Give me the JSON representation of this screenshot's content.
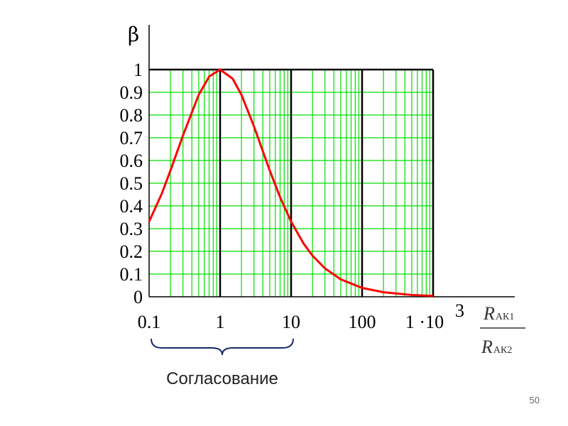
{
  "chart_data": {
    "type": "line",
    "x_scale": "log",
    "xlim": [
      0.1,
      1000
    ],
    "ylim": [
      0,
      1
    ],
    "grid": true,
    "ylabel": "β",
    "xlabel_numerator": "R",
    "xlabel_numerator_sub": "АК1",
    "xlabel_denominator": "R",
    "xlabel_denominator_sub": "АК2",
    "x_ticks": [
      "0.1",
      "1",
      "10",
      "100"
    ],
    "x_tick_last_base": "1 ·10",
    "x_tick_last_exp": "3",
    "y_ticks": [
      "0",
      "0.1",
      "0.2",
      "0.3",
      "0.4",
      "0.5",
      "0.6",
      "0.7",
      "0.8",
      "0.9",
      "1"
    ],
    "series": [
      {
        "color": "#ff0000",
        "formula": "4m/(1+m)^2",
        "x": [
          0.1,
          0.15,
          0.2,
          0.3,
          0.5,
          0.7,
          1,
          1.5,
          2,
          3,
          5,
          7,
          10,
          15,
          20,
          30,
          50,
          100,
          200,
          500,
          1000
        ],
        "y": [
          0.331,
          0.452,
          0.556,
          0.71,
          0.889,
          0.969,
          1.0,
          0.96,
          0.889,
          0.75,
          0.556,
          0.438,
          0.331,
          0.234,
          0.181,
          0.125,
          0.077,
          0.039,
          0.02,
          0.008,
          0.004
        ]
      }
    ]
  },
  "annotation": {
    "brace_label": "Согласование"
  },
  "colors": {
    "grid": "#00dd00",
    "curve": "#ff0000",
    "frame": "#000000"
  },
  "page_number": "50"
}
